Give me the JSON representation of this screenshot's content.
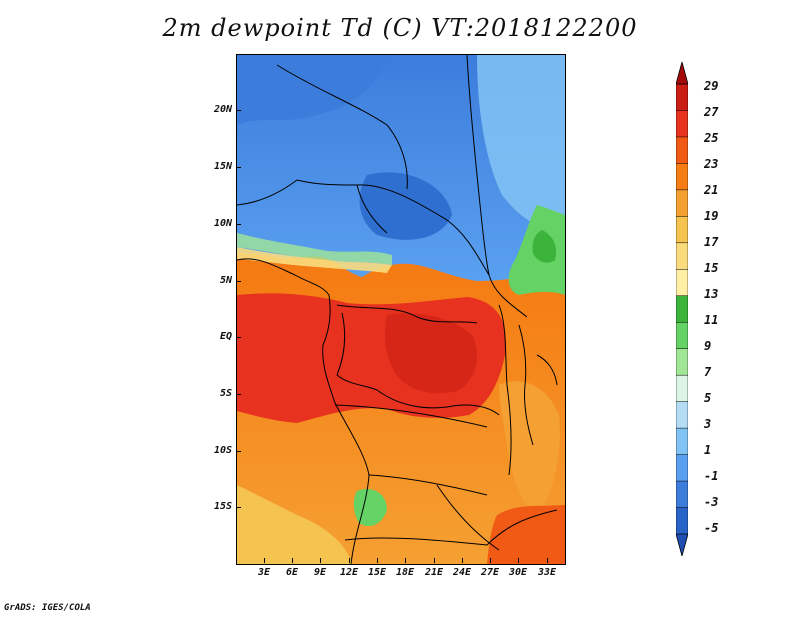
{
  "title": "2m dewpoint Td (C) VT:2018122200",
  "credit": "GrADS: IGES/COLA",
  "axes": {
    "y_labels": [
      "20N",
      "15N",
      "10N",
      "5N",
      "EQ",
      "5S",
      "10S",
      "15S"
    ],
    "x_labels": [
      "3E",
      "6E",
      "9E",
      "12E",
      "15E",
      "18E",
      "21E",
      "24E",
      "27E",
      "30E",
      "33E"
    ]
  },
  "colorbar": {
    "labels": [
      "29",
      "27",
      "25",
      "23",
      "21",
      "19",
      "17",
      "15",
      "13",
      "11",
      "9",
      "7",
      "5",
      "3",
      "1",
      "-1",
      "-3",
      "-5"
    ],
    "colors": [
      "#a50a0a",
      "#c81e14",
      "#e6321e",
      "#f05a14",
      "#f57d14",
      "#f5a032",
      "#f5c350",
      "#fadc7d",
      "#fff0a5",
      "#3cb43c",
      "#64d264",
      "#a0e696",
      "#dcf5e6",
      "#b4dcf5",
      "#82c3f5",
      "#5aa0f0",
      "#3c7ddc",
      "#2864c8",
      "#1e50b4"
    ]
  }
}
